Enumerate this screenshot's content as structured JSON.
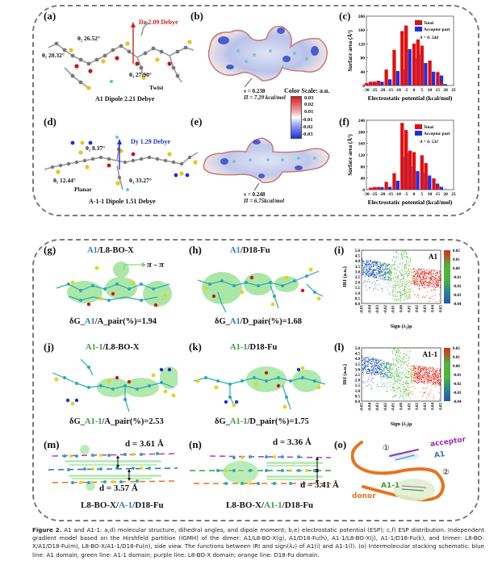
{
  "panels": {
    "a": {
      "label": "(a)",
      "dipole_vector": "Dz 2.09 Debye",
      "angle1": "θ₁ 20.32°",
      "angle2": "θ₂ 26.52°",
      "angle3": "θ₃ 27.90°",
      "conformation": "Twist",
      "caption": "A1 Dipole 2.21 Debye"
    },
    "b": {
      "label": "(b)",
      "nu": "ν  = 0.238",
      "pi": "Π = 7.29 kcal/mol"
    },
    "colorscale": {
      "title": "Color Scale: a.u.",
      "ticks": [
        "0.03",
        "0.02",
        "0.01",
        "-0.01",
        "-0.02",
        "-0.03"
      ]
    },
    "c": {
      "label": "(c)"
    },
    "d": {
      "label": "(d)",
      "dipole_vector": "Dy 1.29 Debye",
      "angle1": "θ₁ 12.44°",
      "angle2": "θ₂ 8.37°",
      "angle3": "θ₃ 33.27°",
      "conformation": "Planar",
      "caption": "A-1-1 Dipole 1.51 Debye"
    },
    "e": {
      "label": "(e)",
      "nu": "ν  = 0.248",
      "pi": "Π = 6.75kcal/mol"
    },
    "f": {
      "label": "(f)"
    },
    "g": {
      "label": "(g)",
      "title_a": "A1",
      "title_b": "/L8-BO-X",
      "annotation": "π - π",
      "dg_prefix": "δG_",
      "dg_mol": "A1",
      "dg_suffix": "/A_pair(%)=1.94"
    },
    "h": {
      "label": "(h)",
      "title_a": "A1",
      "title_b": "/D18-Fu",
      "dg_prefix": "δG_",
      "dg_mol": "A1",
      "dg_suffix": "/D_pair(%)=1.68"
    },
    "i": {
      "label": "(i)"
    },
    "j": {
      "label": "(j)",
      "title_a": "A1-1",
      "title_b": "/L8-BO-X",
      "dg_prefix": "δG_",
      "dg_mol": "A1-1",
      "dg_suffix": "/A_pair(%)=2.53"
    },
    "k": {
      "label": "(k)",
      "title_a": "A1-1",
      "title_b": "/D18-Fu",
      "dg_prefix": "δG_",
      "dg_mol": "A1-1",
      "dg_suffix": "/D_pair(%)=1.75"
    },
    "l": {
      "label": "(l)"
    },
    "m": {
      "label": "(m)",
      "d_top": "d = 3.61 Å",
      "d_bottom": "d = 3.57 Å",
      "caption_a": "L8-BO-X/",
      "caption_b": "A-1",
      "caption_c": "/D18-Fu"
    },
    "n": {
      "label": "(n)",
      "d_top": "d = 3.36 Å",
      "d_bottom": "d = 3.41 Å",
      "caption_a": "L8-BO-X/",
      "caption_b": "A1-1",
      "caption_c": "/D18-Fu"
    },
    "o": {
      "label": "(o)",
      "marker1": "①",
      "marker2": "②",
      "acceptor": "acceptor",
      "a1": "A1",
      "a11": "A1-1",
      "donor": "donor"
    }
  },
  "colors": {
    "total": "#e01010",
    "acceptor": "#1f2fe0",
    "a1_blue": "#2c7bb6",
    "a11_green": "#3a9a3a",
    "dipole_red": "#d42020",
    "dipole_blue": "#2233cc",
    "purple": "#9b2fae",
    "orange": "#e8731e"
  },
  "caption": {
    "fig": "Figure 2.",
    "text": " A1 and A1-1: a,d) molecular structure, dihedral angles, and dipole moment; b,e) electrostatic potential (ESP); c,f) ESP distribution. Independent gradient model based on the Hirshfeld partition (IGMH) of the dimer: A1/L8-BO-X(g), A1/D18-Fu(h), A1-1/L8-BO-X(j), A1-1/D18-Fu(k), and trimer: L8-BO-X/A1/D18-Fu(m), L8-BO-X/A1-1/D18-Fu(n), side view. The functions between IRI and sign(λ₂) of A1(i) and A1-1(l). (o) Intermolecular stacking schematic: blue line: A1 domain; green line: A1-1 domain; purple line: L8-BO-X domain; orange line: D18-Fu domain."
  },
  "chart_data": [
    {
      "id": "c",
      "type": "bar",
      "title": "",
      "xlabel": "Electrostatic potential (kcal/mol)",
      "ylabel": "Surface area (Å²)",
      "xlim": [
        -30,
        25
      ],
      "ylim": [
        0,
        200
      ],
      "xticks": [
        -30,
        -25,
        -20,
        -15,
        -10,
        -5,
        0,
        5,
        10,
        15,
        20,
        25
      ],
      "yticks": [
        0,
        40,
        80,
        120,
        160,
        200
      ],
      "x": [
        -28.75,
        -26.25,
        -23.75,
        -21.25,
        -16.25,
        -11.25,
        -6.25,
        -3.75,
        1.25,
        3.75,
        6.25,
        11.25,
        16.25,
        18.75
      ],
      "series": [
        {
          "name": "Total",
          "values": [
            7,
            11,
            11,
            14,
            46,
            103,
            157,
            173,
            121,
            133,
            115,
            72,
            39,
            7
          ]
        },
        {
          "name": "Acceptor part",
          "values": [
            7,
            11,
            10,
            11,
            18,
            42,
            46,
            105,
            79,
            89,
            65,
            40,
            29,
            4
          ]
        }
      ],
      "annotation": "A = 0. 544",
      "legend": "top-right"
    },
    {
      "id": "f",
      "type": "bar",
      "title": "",
      "xlabel": "Electrostatic potential (kcal/mol)",
      "ylabel": "Surface area (Å²)",
      "xlim": [
        -30,
        25
      ],
      "ylim": [
        0,
        240
      ],
      "xticks": [
        -30,
        -25,
        -20,
        -15,
        -10,
        -5,
        0,
        5,
        10,
        15,
        20,
        25
      ],
      "yticks": [
        0,
        40,
        80,
        120,
        160,
        200,
        240
      ],
      "x": [
        -26.25,
        -23.75,
        -21.25,
        -16.25,
        -11.25,
        -6.25,
        -3.75,
        -1.25,
        1.25,
        6.25,
        8.75,
        13.75,
        16.25
      ],
      "series": [
        {
          "name": "Total",
          "values": [
            7,
            9,
            9,
            27,
            57,
            231,
            206,
            135,
            130,
            119,
            92,
            39,
            15
          ]
        },
        {
          "name": "Acceptor part",
          "values": [
            7,
            9,
            9,
            10,
            31,
            114,
            128,
            79,
            64,
            59,
            49,
            21,
            10
          ]
        }
      ],
      "annotation": "A = 0. 532",
      "legend": "top-right"
    },
    {
      "id": "i",
      "type": "scatter",
      "title": "",
      "label": "A1",
      "xlabel": "Sign (λ₂)ρ",
      "ylabel": "IRI (a.u.)",
      "xlim": [
        -0.05,
        0.05
      ],
      "ylim": [
        0,
        5.0
      ],
      "xticks": [
        "-0.05",
        "-0.04",
        "-0.03",
        "-0.02",
        "-0.01",
        "0.00",
        "0.01",
        "0.02",
        "0.03",
        "0.04",
        "0.05"
      ],
      "yticks": [
        "0.0",
        "0.5",
        "1.0",
        "1.5",
        "2.0",
        "2.5",
        "3.0",
        "3.5",
        "4.0",
        "4.5",
        "5.0"
      ],
      "colorbar_ticks": [
        "0.02",
        "0.01",
        "0.00",
        "-0.01",
        "-0.02",
        "-0.03",
        "-0.04"
      ]
    },
    {
      "id": "l",
      "type": "scatter",
      "title": "",
      "label": "A1-1",
      "xlabel": "Sign (λ₂)ρ",
      "ylabel": "IRI (a.u.)",
      "xlim": [
        -0.05,
        0.05
      ],
      "ylim": [
        0,
        5.0
      ],
      "xticks": [
        "-0.05",
        "-0.04",
        "-0.03",
        "-0.02",
        "-0.01",
        "0.00",
        "0.01",
        "0.02",
        "0.03",
        "0.04",
        "0.05"
      ],
      "yticks": [
        "0.0",
        "0.5",
        "1.0",
        "1.5",
        "2.0",
        "2.5",
        "3.0",
        "3.5",
        "4.0",
        "4.5",
        "5.0"
      ],
      "colorbar_ticks": [
        "0.02",
        "0.01",
        "0.00",
        "-0.01",
        "-0.02",
        "-0.03",
        "-0.04"
      ]
    }
  ]
}
